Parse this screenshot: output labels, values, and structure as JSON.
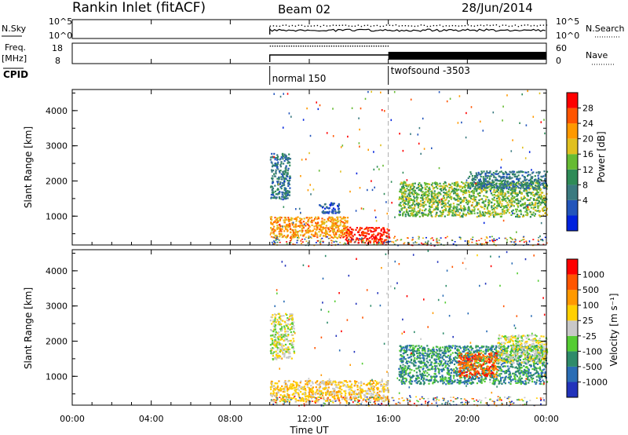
{
  "header": {
    "title": "Rankin Inlet (fitACF)",
    "beam": "Beam 02",
    "date": "28/Jun/2014"
  },
  "noise_panel": {
    "left_label": "N.Sky",
    "right_label": "N.Search",
    "left_ticks": [
      "10^5",
      "10^0"
    ],
    "right_ticks": [
      "10^5",
      "10^0"
    ]
  },
  "freq_panel": {
    "left_label": "Freq.",
    "left_unit": "[MHz]",
    "right_label": "Nave",
    "left_ticks": [
      "18",
      "8"
    ],
    "right_ticks": [
      "60",
      "0"
    ]
  },
  "cpid": {
    "label": "CPID",
    "modes": [
      {
        "start_hour": 10.0,
        "name": "normal 150"
      },
      {
        "start_hour": 16.0,
        "name": "twofsound -3503"
      }
    ]
  },
  "power_panel": {
    "ylabel": "Slant Range [km]",
    "yticks": [
      "4000",
      "3000",
      "2000",
      "1000"
    ],
    "colorbar_label": "Power [dB]",
    "colorbar_ticks": [
      "28",
      "24",
      "20",
      "16",
      "12",
      "8",
      "4"
    ],
    "colors": [
      "#0022dd",
      "#2255bb",
      "#3a7a80",
      "#2e8b57",
      "#66bb33",
      "#e0c020",
      "#ff9900",
      "#ff5500",
      "#ff0000"
    ]
  },
  "velocity_panel": {
    "ylabel": "Slant Range [km]",
    "yticks": [
      "4000",
      "3000",
      "2000",
      "1000"
    ],
    "colorbar_label": "Velocity [m s⁻¹]",
    "colorbar_ticks": [
      "1000",
      "500",
      "100",
      "25",
      "-25",
      "-100",
      "-500",
      "-1000"
    ],
    "colors": [
      "#2233bb",
      "#2a6db5",
      "#2e8b6a",
      "#55cc33",
      "#c8c8c8",
      "#ffd000",
      "#ff9900",
      "#ff5500",
      "#ff0000"
    ]
  },
  "x_axis": {
    "ticks": [
      "00:00",
      "04:00",
      "08:00",
      "12:00",
      "16:00",
      "20:00",
      "00:00"
    ],
    "xlabel": "Time UT"
  },
  "chart_data": {
    "type": "heatmap",
    "x_range_hours": [
      0,
      24
    ],
    "y_range_km": [
      180,
      4600
    ],
    "data_start_hour": 10.0,
    "mode_change_hour": 16.0,
    "power_regions": [
      {
        "x0": 10.0,
        "x1": 14.0,
        "y0": 400,
        "y1": 1000,
        "level": 6
      },
      {
        "x0": 13.8,
        "x1": 16.0,
        "y0": 250,
        "y1": 700,
        "level": 8
      },
      {
        "x0": 10.0,
        "x1": 11.0,
        "y0": 1500,
        "y1": 2800,
        "level": 2
      },
      {
        "x0": 12.5,
        "x1": 13.5,
        "y0": 1100,
        "y1": 1400,
        "level": 1
      },
      {
        "x0": 16.5,
        "x1": 24.0,
        "y0": 1000,
        "y1": 2000,
        "level": 4
      },
      {
        "x0": 20.0,
        "x1": 24.0,
        "y0": 1800,
        "y1": 2300,
        "level": 2
      }
    ],
    "velocity_regions": [
      {
        "x0": 10.0,
        "x1": 11.2,
        "y0": 1500,
        "y1": 2800,
        "level": 4
      },
      {
        "x0": 10.0,
        "x1": 16.0,
        "y0": 300,
        "y1": 900,
        "level": 5
      },
      {
        "x0": 16.5,
        "x1": 24.0,
        "y0": 800,
        "y1": 1900,
        "level": 2
      },
      {
        "x0": 19.5,
        "x1": 21.5,
        "y0": 1000,
        "y1": 1700,
        "level": 7
      },
      {
        "x0": 21.5,
        "x1": 24.0,
        "y0": 1400,
        "y1": 2200,
        "level": 4
      }
    ]
  }
}
